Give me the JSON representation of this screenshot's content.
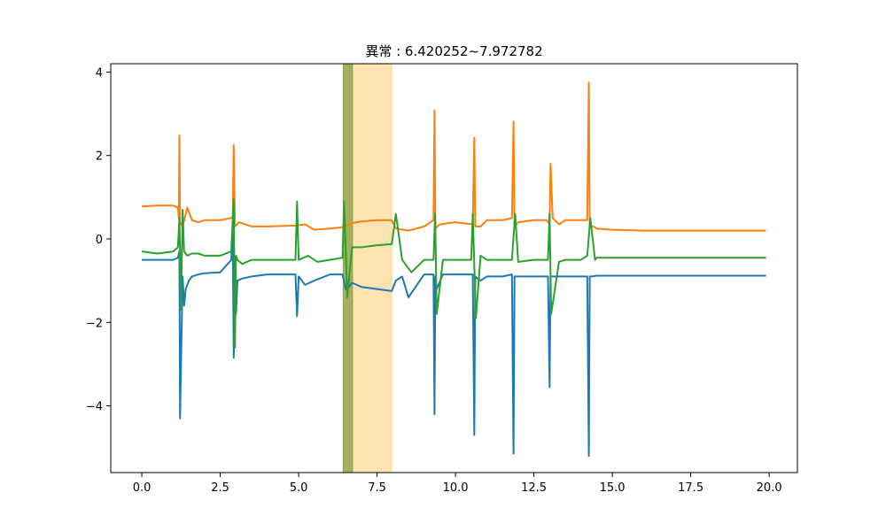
{
  "chart_data": {
    "type": "line",
    "title": "異常 : 6.420252~7.972782",
    "xlabel": "",
    "ylabel": "",
    "xlim": [
      -0.99,
      20.9
    ],
    "ylim": [
      -5.6,
      4.2
    ],
    "x_ticks": [
      0.0,
      2.5,
      5.0,
      7.5,
      10.0,
      12.5,
      15.0,
      17.5,
      20.0
    ],
    "x_tick_labels": [
      "0.0",
      "2.5",
      "5.0",
      "7.5",
      "10.0",
      "12.5",
      "15.0",
      "17.5",
      "20.0"
    ],
    "y_ticks": [
      -4,
      -2,
      0,
      2,
      4
    ],
    "y_tick_labels": [
      "−4",
      "−2",
      "0",
      "2",
      "4"
    ],
    "grid": false,
    "legend": "none",
    "highlights": [
      {
        "x0": 6.42,
        "x1": 6.72,
        "color": "#6b8e23",
        "opacity": 0.6
      },
      {
        "x0": 6.42,
        "x1": 7.97,
        "color": "#ffa500",
        "opacity": 0.3
      }
    ],
    "series": [
      {
        "color": "#1f77b4",
        "x": [
          0,
          0.5,
          1.0,
          1.15,
          1.2,
          1.22,
          1.3,
          1.35,
          1.4,
          1.5,
          1.6,
          1.8,
          2.0,
          2.5,
          2.85,
          2.9,
          2.93,
          2.97,
          3.0,
          3.05,
          3.2,
          3.5,
          4.0,
          4.9,
          4.95,
          5.0,
          5.2,
          5.5,
          6.0,
          6.4,
          6.5,
          6.6,
          6.7,
          7.0,
          7.5,
          7.97,
          8.1,
          8.3,
          8.5,
          9.0,
          9.3,
          9.33,
          9.36,
          9.4,
          9.6,
          10.0,
          10.55,
          10.6,
          10.63,
          10.7,
          10.8,
          11.0,
          11.5,
          11.8,
          11.85,
          11.88,
          11.95,
          12.2,
          12.5,
          12.95,
          13.0,
          13.03,
          13.1,
          13.3,
          13.5,
          14.0,
          14.2,
          14.25,
          14.28,
          14.35,
          14.5,
          15.0,
          15.5,
          16.0,
          17.5,
          19.9
        ],
        "y": [
          -0.5,
          -0.5,
          -0.5,
          -0.45,
          -0.3,
          -4.3,
          -0.9,
          -1.6,
          -1.2,
          -1.0,
          -0.9,
          -0.85,
          -0.82,
          -0.8,
          -0.5,
          0.1,
          -2.85,
          -1.2,
          -1.8,
          -1.0,
          -0.95,
          -0.9,
          -0.85,
          -0.85,
          -1.85,
          -0.9,
          -1.1,
          -1.0,
          -0.85,
          -0.85,
          -1.2,
          -1.15,
          -1.05,
          -1.15,
          -1.2,
          -1.25,
          -1.0,
          -0.9,
          -1.4,
          -0.85,
          -0.85,
          -4.2,
          -0.9,
          -1.2,
          -0.85,
          -0.85,
          -0.85,
          -4.7,
          -0.9,
          -0.95,
          -1.0,
          -0.9,
          -0.9,
          -0.85,
          -5.15,
          -0.9,
          -0.9,
          -0.9,
          -0.9,
          -0.9,
          -3.55,
          -0.9,
          -0.9,
          -0.9,
          -0.9,
          -0.9,
          -0.9,
          -5.2,
          -0.9,
          -0.9,
          -0.88,
          -0.88,
          -0.88,
          -0.88,
          -0.88,
          -0.88
        ]
      },
      {
        "color": "#ff7f0e",
        "x": [
          0,
          0.5,
          1.0,
          1.15,
          1.18,
          1.2,
          1.22,
          1.3,
          1.45,
          1.6,
          1.8,
          2.0,
          2.5,
          2.85,
          2.9,
          2.93,
          2.97,
          3.1,
          3.5,
          4.0,
          4.9,
          5.2,
          5.5,
          6.0,
          6.4,
          6.7,
          7.0,
          7.5,
          7.97,
          8.1,
          8.5,
          9.0,
          9.3,
          9.33,
          9.36,
          9.5,
          10.0,
          10.55,
          10.6,
          10.63,
          10.8,
          11.0,
          11.5,
          11.8,
          11.85,
          11.88,
          12.0,
          12.5,
          12.9,
          13.0,
          13.03,
          13.1,
          13.3,
          13.5,
          14.0,
          14.2,
          14.25,
          14.28,
          14.4,
          14.5,
          15.0,
          16.0,
          17.5,
          19.9
        ],
        "y": [
          0.78,
          0.8,
          0.8,
          0.75,
          0.5,
          2.48,
          0.4,
          0.3,
          0.75,
          0.45,
          0.4,
          0.45,
          0.45,
          0.5,
          0.55,
          2.25,
          0.3,
          0.4,
          0.3,
          0.3,
          0.32,
          0.35,
          0.22,
          0.25,
          0.28,
          0.38,
          0.42,
          0.45,
          0.45,
          0.25,
          0.2,
          0.3,
          0.45,
          3.08,
          0.25,
          0.35,
          0.4,
          0.35,
          2.43,
          0.3,
          0.3,
          0.45,
          0.45,
          0.5,
          2.82,
          0.3,
          0.4,
          0.45,
          0.45,
          0.35,
          1.8,
          0.5,
          0.35,
          0.45,
          0.45,
          0.45,
          3.75,
          0.3,
          0.3,
          0.25,
          0.22,
          0.2,
          0.2,
          0.2
        ]
      },
      {
        "color": "#2ca02c",
        "x": [
          0,
          0.5,
          1.0,
          1.15,
          1.2,
          1.25,
          1.3,
          1.35,
          1.45,
          1.6,
          1.8,
          2.0,
          2.5,
          2.85,
          2.93,
          2.97,
          3.0,
          3.05,
          3.2,
          3.5,
          4.0,
          4.9,
          4.95,
          5.0,
          5.3,
          5.6,
          6.0,
          6.4,
          6.45,
          6.55,
          6.7,
          7.0,
          7.5,
          7.97,
          8.1,
          8.3,
          8.6,
          9.0,
          9.3,
          9.35,
          9.4,
          9.6,
          10.0,
          10.5,
          10.55,
          10.65,
          10.8,
          11.0,
          11.5,
          11.8,
          11.9,
          12.0,
          12.5,
          12.95,
          13.0,
          13.05,
          13.3,
          13.5,
          14.0,
          14.2,
          14.3,
          14.45,
          14.5,
          15.0,
          16.0,
          17.5,
          19.9
        ],
        "y": [
          -0.3,
          -0.35,
          -0.3,
          -0.2,
          0.5,
          -1.7,
          0.7,
          -0.3,
          -0.4,
          -0.35,
          -0.35,
          -0.4,
          -0.4,
          -0.3,
          0.95,
          -2.6,
          -0.4,
          -0.5,
          -0.6,
          -0.5,
          -0.5,
          -0.5,
          0.9,
          -0.5,
          -0.4,
          -0.55,
          -0.5,
          -0.45,
          0.9,
          -1.4,
          -0.2,
          -0.2,
          -0.15,
          -0.12,
          0.6,
          -0.5,
          -0.8,
          -0.5,
          -0.5,
          0.6,
          -1.8,
          -0.5,
          -0.5,
          -0.5,
          0.6,
          -1.9,
          -0.4,
          -0.5,
          -0.5,
          -0.5,
          0.6,
          -0.55,
          -0.5,
          -0.5,
          0.6,
          -1.8,
          -0.55,
          -0.5,
          -0.5,
          -0.4,
          0.5,
          -0.5,
          -0.45,
          -0.45,
          -0.45,
          -0.45,
          -0.45
        ]
      }
    ]
  }
}
